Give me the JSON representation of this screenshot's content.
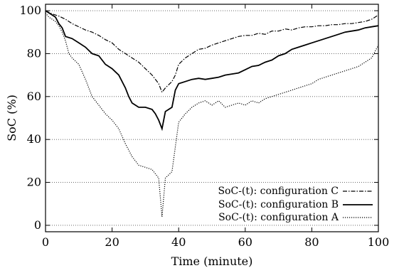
{
  "chart_data": {
    "type": "line",
    "title": "",
    "xlabel": "Time (minute)",
    "ylabel": "SoC (%)",
    "xlim": [
      0,
      100
    ],
    "ylim": [
      -3,
      103
    ],
    "xticks": [
      0,
      20,
      40,
      60,
      80,
      100
    ],
    "yticks": [
      0,
      20,
      40,
      60,
      80,
      100
    ],
    "grid": "horizontal dotted",
    "legend_position": "bottom-right",
    "series": [
      {
        "name": "SoC-(t): configuration C",
        "style": "dash-dot",
        "x": [
          0,
          2,
          4,
          6,
          8,
          10,
          12,
          14,
          16,
          18,
          20,
          22,
          24,
          26,
          28,
          30,
          32,
          34,
          35,
          36,
          38,
          39,
          40,
          42,
          44,
          46,
          48,
          50,
          52,
          54,
          56,
          58,
          60,
          62,
          64,
          66,
          68,
          70,
          72,
          74,
          76,
          78,
          80,
          82,
          84,
          86,
          88,
          90,
          92,
          94,
          96,
          98,
          99,
          100
        ],
        "y": [
          100,
          98.5,
          97.5,
          96,
          94,
          92.5,
          91,
          90,
          88.5,
          86.5,
          85,
          82,
          80,
          78,
          76,
          73,
          70,
          66,
          62,
          64,
          67,
          70,
          75,
          78,
          80,
          82,
          82.5,
          84,
          85,
          86,
          87,
          88,
          88.5,
          88.5,
          89.5,
          89,
          90.5,
          90.5,
          91.5,
          91,
          92,
          92.5,
          92.5,
          93,
          93,
          93.5,
          93.5,
          94,
          94,
          94.5,
          95,
          96,
          97,
          98
        ]
      },
      {
        "name": "SoC-(t): configuration B",
        "style": "solid",
        "x": [
          0,
          1,
          2,
          3,
          4,
          5,
          6,
          8,
          10,
          12,
          14,
          16,
          18,
          20,
          22,
          24,
          25,
          26,
          28,
          30,
          32,
          33,
          34,
          35,
          36,
          38,
          39,
          40,
          42,
          44,
          46,
          48,
          50,
          52,
          54,
          56,
          58,
          60,
          62,
          64,
          66,
          68,
          70,
          72,
          74,
          76,
          78,
          80,
          82,
          84,
          86,
          88,
          90,
          92,
          94,
          96,
          98,
          100
        ],
        "y": [
          100,
          99,
          98,
          97,
          94,
          92,
          88,
          87,
          85,
          83,
          80,
          79,
          75,
          73,
          70,
          64,
          60,
          57,
          55,
          55,
          54,
          52,
          49,
          45,
          53,
          55,
          63,
          66,
          67,
          68,
          68.5,
          68,
          68.5,
          69,
          70,
          70.5,
          71,
          72.5,
          74,
          74.5,
          76,
          77,
          79,
          80,
          82,
          83,
          84,
          85,
          86,
          87,
          88,
          89,
          90,
          90.5,
          91,
          92,
          92.5,
          93
        ]
      },
      {
        "name": "SoC-(t): configuration A",
        "style": "dotted",
        "x": [
          0,
          1,
          2,
          3,
          4,
          5,
          6,
          7,
          8,
          10,
          12,
          14,
          16,
          18,
          20,
          22,
          24,
          26,
          28,
          30,
          32,
          34,
          35,
          36,
          38,
          40,
          42,
          44,
          46,
          48,
          50,
          52,
          54,
          56,
          58,
          60,
          62,
          64,
          66,
          68,
          70,
          72,
          74,
          76,
          78,
          80,
          82,
          84,
          86,
          88,
          90,
          92,
          94,
          96,
          98,
          100
        ],
        "y": [
          99,
          97,
          96,
          95,
          93,
          90,
          86,
          80,
          78,
          75,
          68,
          60,
          56,
          52,
          49,
          45,
          38,
          32,
          28,
          27,
          26,
          22,
          4,
          22,
          25,
          48,
          52,
          55,
          57,
          58,
          56,
          58,
          55,
          56,
          57,
          56,
          58,
          57,
          59,
          60,
          61,
          62,
          63,
          64,
          65,
          66,
          68,
          69,
          70,
          71,
          72,
          73,
          74,
          76,
          78,
          84
        ]
      }
    ]
  }
}
